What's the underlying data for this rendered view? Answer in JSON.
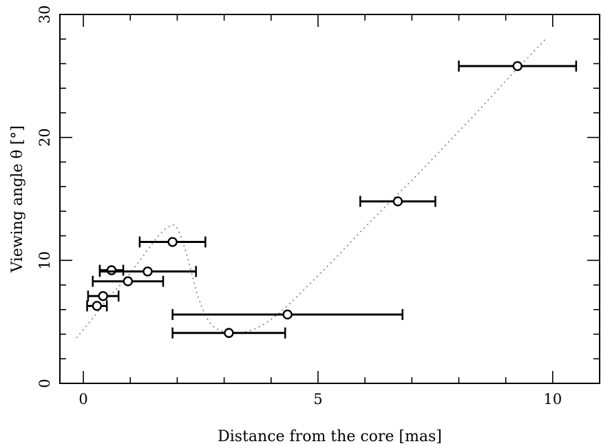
{
  "chart_data": {
    "type": "scatter",
    "title": "",
    "xlabel": "Distance from the core [mas]",
    "ylabel": "Viewing angle θ [°]",
    "xlim": [
      -0.5,
      11.0
    ],
    "ylim": [
      0,
      30
    ],
    "xticks": [
      0,
      5,
      10
    ],
    "yticks": [
      0,
      10,
      20,
      30
    ],
    "xtick_labels": [
      "0",
      "5",
      "10"
    ],
    "ytick_labels": [
      "0",
      "10",
      "20",
      "30"
    ],
    "x_minor_step": 1,
    "y_minor_step": 2,
    "grid": false,
    "series": [
      {
        "marker": "open-circle",
        "color": "#000000",
        "points": [
          {
            "x": 0.29,
            "y": 6.3,
            "xmin": 0.08,
            "xmax": 0.5
          },
          {
            "x": 0.42,
            "y": 7.1,
            "xmin": 0.1,
            "xmax": 0.75
          },
          {
            "x": 0.6,
            "y": 9.2,
            "xmin": 0.35,
            "xmax": 0.85
          },
          {
            "x": 0.95,
            "y": 8.3,
            "xmin": 0.2,
            "xmax": 1.7
          },
          {
            "x": 1.37,
            "y": 9.1,
            "xmin": 0.35,
            "xmax": 2.4
          },
          {
            "x": 1.9,
            "y": 11.5,
            "xmin": 1.2,
            "xmax": 2.6
          },
          {
            "x": 3.1,
            "y": 4.1,
            "xmin": 1.9,
            "xmax": 4.3
          },
          {
            "x": 4.35,
            "y": 5.6,
            "xmin": 1.9,
            "xmax": 6.8
          },
          {
            "x": 6.7,
            "y": 14.8,
            "xmin": 5.9,
            "xmax": 7.5
          },
          {
            "x": 9.25,
            "y": 25.8,
            "xmin": 8.0,
            "xmax": 10.5
          }
        ]
      },
      {
        "type": "line",
        "style": "dotted",
        "color": "#888888",
        "x": [
          -0.15,
          0.2,
          0.5,
          0.9,
          1.3,
          1.6,
          1.85,
          2.0,
          2.2,
          2.45,
          2.7,
          3.0,
          3.3,
          3.7,
          4.2,
          4.8,
          5.4,
          6.0,
          6.6,
          7.2,
          7.8,
          8.4,
          9.0,
          9.5,
          9.85
        ],
        "y": [
          3.7,
          5.3,
          6.8,
          8.5,
          10.5,
          12.0,
          12.8,
          12.6,
          10.5,
          7.0,
          4.9,
          4.2,
          4.1,
          4.5,
          5.8,
          8.0,
          10.3,
          12.7,
          15.0,
          17.3,
          19.7,
          22.1,
          24.6,
          26.6,
          28.0
        ]
      }
    ]
  }
}
